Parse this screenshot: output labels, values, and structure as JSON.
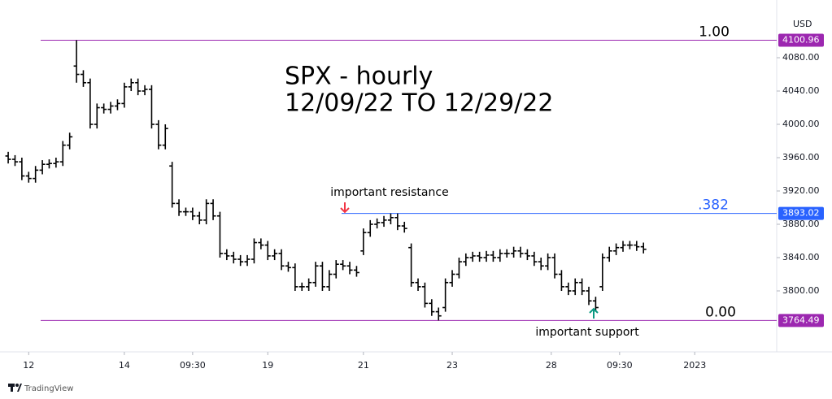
{
  "chart_data": {
    "type": "ohlc",
    "title": "SPX - hourly",
    "subtitle": "12/09/22 TO 12/29/22",
    "currency": "USD",
    "color": "#000000",
    "open": [
      3962,
      3958,
      3955,
      3938,
      3935,
      3945,
      3952,
      3953,
      3955,
      3975,
      4070,
      4060,
      4050,
      4000,
      4020,
      4018,
      4022,
      4025,
      4045,
      4050,
      4040,
      4042,
      4000,
      3975,
      3950,
      3905,
      3895,
      3895,
      3890,
      3885,
      3905,
      3890,
      3845,
      3842,
      3838,
      3835,
      3838,
      3858,
      3855,
      3842,
      3845,
      3830,
      3828,
      3805,
      3805,
      3810,
      3830,
      3805,
      3820,
      3832,
      3830,
      3825,
      3848,
      3870,
      3880,
      3882,
      3885,
      3888,
      3878,
      3852,
      3810,
      3805,
      3785,
      3775,
      3780,
      3810,
      3820,
      3835,
      3840,
      3842,
      3840,
      3843,
      3840,
      3845,
      3845,
      3848,
      3845,
      3842,
      3835,
      3830,
      3840,
      3820,
      3805,
      3800,
      3810,
      3800,
      3788,
      3805,
      3840,
      3848,
      3852,
      3855,
      3855,
      3853
    ],
    "high": [
      3967,
      3963,
      3960,
      3943,
      3950,
      3957,
      3958,
      3960,
      3980,
      3990,
      4100.96,
      4065,
      4055,
      4025,
      4025,
      4027,
      4030,
      4050,
      4055,
      4055,
      4047,
      4047,
      4005,
      4000,
      3955,
      3910,
      3900,
      3900,
      3895,
      3910,
      3910,
      3895,
      3850,
      3847,
      3843,
      3843,
      3863,
      3863,
      3860,
      3850,
      3850,
      3835,
      3833,
      3810,
      3815,
      3835,
      3835,
      3825,
      3837,
      3837,
      3835,
      3830,
      3875,
      3885,
      3887,
      3890,
      3893,
      3893,
      3883,
      3857,
      3815,
      3810,
      3790,
      3780,
      3815,
      3825,
      3840,
      3845,
      3847,
      3847,
      3848,
      3848,
      3850,
      3850,
      3853,
      3853,
      3850,
      3847,
      3840,
      3845,
      3845,
      3825,
      3810,
      3815,
      3815,
      3805,
      3793,
      3845,
      3853,
      3857,
      3860,
      3860,
      3860,
      3858
    ],
    "low": [
      3953,
      3950,
      3933,
      3930,
      3930,
      3940,
      3947,
      3948,
      3950,
      3970,
      4050,
      4045,
      3995,
      3995,
      4013,
      4013,
      4017,
      4020,
      4040,
      4035,
      4035,
      3995,
      3970,
      3970,
      3900,
      3890,
      3890,
      3885,
      3880,
      3880,
      3885,
      3840,
      3837,
      3833,
      3830,
      3830,
      3833,
      3850,
      3837,
      3837,
      3825,
      3823,
      3800,
      3800,
      3800,
      3805,
      3800,
      3800,
      3815,
      3825,
      3820,
      3817,
      3843,
      3865,
      3875,
      3877,
      3880,
      3873,
      3870,
      3805,
      3800,
      3780,
      3770,
      3764.49,
      3775,
      3805,
      3815,
      3830,
      3835,
      3835,
      3835,
      3835,
      3835,
      3840,
      3840,
      3840,
      3837,
      3830,
      3825,
      3825,
      3815,
      3800,
      3795,
      3795,
      3795,
      3783,
      3775,
      3800,
      3835,
      3843,
      3847,
      3850,
      3848,
      3845
    ],
    "close": [
      3958,
      3955,
      3938,
      3935,
      3945,
      3952,
      3953,
      3955,
      3975,
      3985,
      4060,
      4050,
      4000,
      4020,
      4018,
      4022,
      4025,
      4045,
      4050,
      4040,
      4042,
      4000,
      3975,
      3995,
      3905,
      3895,
      3895,
      3890,
      3885,
      3905,
      3890,
      3845,
      3842,
      3838,
      3835,
      3838,
      3858,
      3855,
      3842,
      3845,
      3830,
      3828,
      3805,
      3805,
      3810,
      3830,
      3805,
      3820,
      3832,
      3830,
      3825,
      3822,
      3870,
      3880,
      3882,
      3885,
      3888,
      3878,
      3875,
      3810,
      3805,
      3785,
      3775,
      3770,
      3810,
      3820,
      3835,
      3840,
      3842,
      3840,
      3843,
      3840,
      3845,
      3845,
      3848,
      3845,
      3842,
      3835,
      3830,
      3840,
      3820,
      3805,
      3800,
      3810,
      3800,
      3788,
      3780,
      3840,
      3848,
      3852,
      3855,
      3855,
      3853,
      3850
    ],
    "xlim": [
      -1.2,
      112.5
    ],
    "xticks": [
      {
        "value": 3,
        "label": "12"
      },
      {
        "value": 17,
        "label": "14"
      },
      {
        "value": 27,
        "label": "09:30"
      },
      {
        "value": 38,
        "label": "19"
      },
      {
        "value": 52,
        "label": "21"
      },
      {
        "value": 65,
        "label": "23"
      },
      {
        "value": 79.5,
        "label": "28"
      },
      {
        "value": 89.5,
        "label": "09:30"
      },
      {
        "value": 100.5,
        "label": "2023"
      }
    ],
    "ylim": [
      3726.8,
      4149.3
    ],
    "yticks": [
      {
        "value": 4080,
        "label": "4080.00"
      },
      {
        "value": 4040,
        "label": "4040.00"
      },
      {
        "value": 4000,
        "label": "4000.00"
      },
      {
        "value": 3960,
        "label": "3960.00"
      },
      {
        "value": 3920,
        "label": "3920.00"
      },
      {
        "value": 3880,
        "label": "3880.00"
      },
      {
        "value": 3840,
        "label": "3840.00"
      },
      {
        "value": 3800,
        "label": "3800.00"
      }
    ],
    "levels": [
      {
        "label": "1.00",
        "value": 4100.96,
        "color": "#9c27b0",
        "label_color": "#000000"
      },
      {
        "label": ".382",
        "value": 3893.02,
        "color": "#2962ff",
        "label_color": "#2962ff"
      },
      {
        "label": "0.00",
        "value": 3764.49,
        "color": "#9c27b0",
        "label_color": "#000000"
      }
    ],
    "annotations": [
      {
        "text": "important resistance",
        "arrow_color": "#f23645"
      },
      {
        "text": "important support",
        "arrow_color": "#089981"
      }
    ]
  },
  "footer": "TradingView"
}
